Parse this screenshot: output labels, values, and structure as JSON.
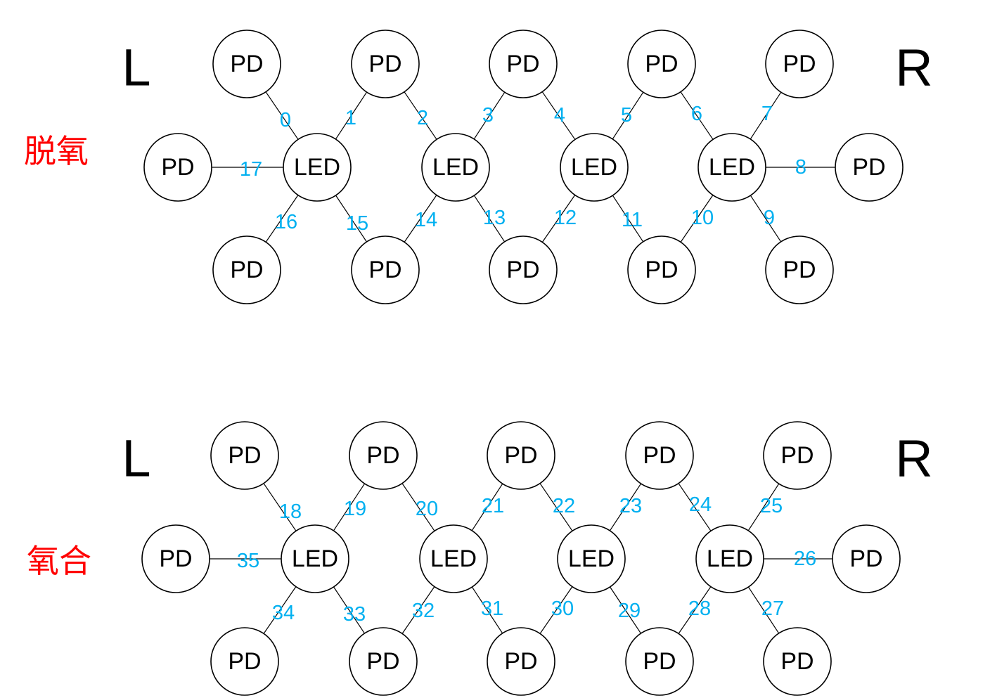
{
  "colors": {
    "channel_label": "#00b0f0",
    "panel_title": "#ff0000",
    "node_stroke": "#000000"
  },
  "node_labels": {
    "emitter": "LED",
    "detector": "PD"
  },
  "panels": [
    {
      "title": "脱氧",
      "left_label": "L",
      "right_label": "R",
      "channels": [
        "0",
        "1",
        "2",
        "3",
        "4",
        "5",
        "6",
        "7",
        "8",
        "9",
        "10",
        "11",
        "12",
        "13",
        "14",
        "15",
        "16",
        "17"
      ]
    },
    {
      "title": "氧合",
      "left_label": "L",
      "right_label": "R",
      "channels": [
        "18",
        "19",
        "20",
        "21",
        "22",
        "23",
        "24",
        "25",
        "26",
        "27",
        "28",
        "29",
        "30",
        "31",
        "32",
        "33",
        "34",
        "35"
      ]
    }
  ]
}
